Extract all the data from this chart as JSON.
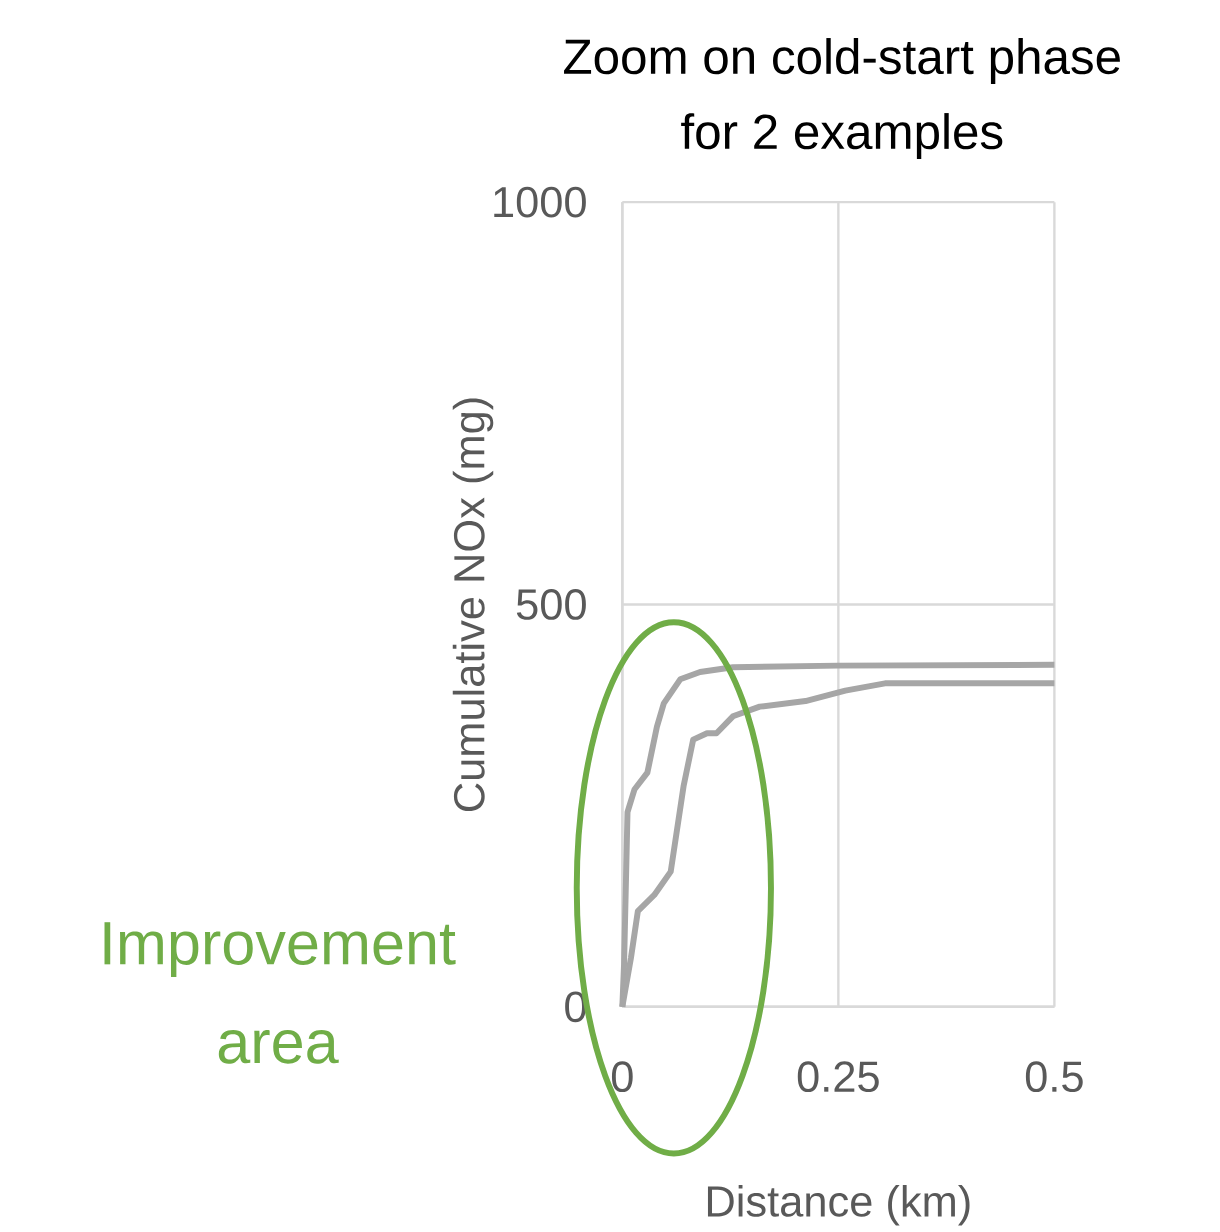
{
  "chart_data": {
    "type": "line",
    "title": "Zoom on cold-start phase\nfor 2 examples",
    "xlabel": "Distance (km)",
    "ylabel": "Cumulative NOx (mg)",
    "xlim": [
      0,
      0.5
    ],
    "xticks": [
      0,
      0.25,
      0.5
    ],
    "ylim": [
      0,
      1000
    ],
    "yticks": [
      0,
      500,
      1000
    ],
    "grid": true,
    "marker": "none",
    "line_style": "solid",
    "annotations": [
      "Improvement\narea"
    ],
    "series": [
      {
        "color": "#a6a6a6",
        "x": [
          0,
          0.002,
          0.006,
          0.014,
          0.029,
          0.04,
          0.048,
          0.067,
          0.09,
          0.128,
          0.25,
          0.5
        ],
        "values": [
          0,
          53,
          242,
          270,
          291,
          348,
          377,
          407,
          416,
          422,
          424,
          425
        ]
      },
      {
        "color": "#a6a6a6",
        "x": [
          0,
          0.01,
          0.018,
          0.037,
          0.056,
          0.071,
          0.082,
          0.098,
          0.109,
          0.128,
          0.159,
          0.212,
          0.258,
          0.304,
          0.5
        ],
        "values": [
          0,
          61,
          119,
          139,
          168,
          275,
          332,
          340,
          340,
          361,
          373,
          380,
          393,
          402,
          402
        ]
      }
    ]
  }
}
